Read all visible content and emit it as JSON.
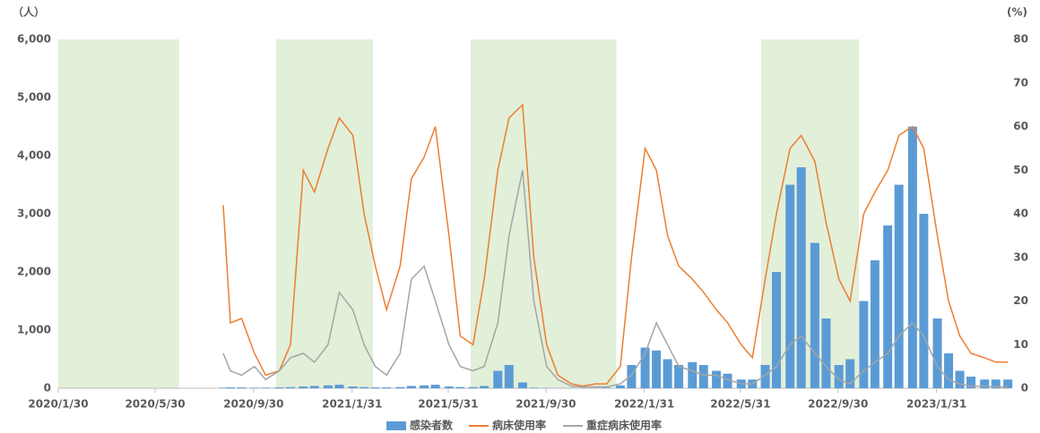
{
  "chart_data": {
    "type": "combo",
    "y_unit": "（人）",
    "y2_unit": "(%)",
    "x": [
      "2020/8/23",
      "2020/9/1",
      "2020/9/15",
      "2020/10/1",
      "2020/10/15",
      "2020/11/1",
      "2020/11/15",
      "2020/12/1",
      "2020/12/15",
      "2021/1/1",
      "2021/1/15",
      "2021/2/1",
      "2021/2/15",
      "2021/3/1",
      "2021/3/15",
      "2021/4/1",
      "2021/4/15",
      "2021/5/1",
      "2021/5/15",
      "2021/6/1",
      "2021/6/15",
      "2021/7/1",
      "2021/7/15",
      "2021/8/1",
      "2021/8/15",
      "2021/9/1",
      "2021/9/15",
      "2021/10/1",
      "2021/10/15",
      "2021/11/1",
      "2021/11/15",
      "2021/12/1",
      "2021/12/15",
      "2022/1/1",
      "2022/1/15",
      "2022/2/1",
      "2022/2/15",
      "2022/3/1",
      "2022/3/15",
      "2022/4/1",
      "2022/4/15",
      "2022/5/1",
      "2022/5/15",
      "2022/6/1",
      "2022/6/15",
      "2022/7/1",
      "2022/7/15",
      "2022/8/1",
      "2022/8/15",
      "2022/9/1",
      "2022/9/15",
      "2022/10/1",
      "2022/10/15",
      "2022/11/1",
      "2022/11/15",
      "2022/12/1",
      "2022/12/15",
      "2023/1/1",
      "2023/1/15",
      "2023/2/1",
      "2023/2/15",
      "2023/3/1",
      "2023/3/15",
      "2023/4/1",
      "2023/4/15",
      "2023/4/30"
    ],
    "series": [
      {
        "name": "感染者数",
        "type": "bar",
        "color": "#5b9bd5",
        "values": [
          10,
          15,
          15,
          10,
          10,
          15,
          20,
          30,
          40,
          50,
          60,
          30,
          20,
          15,
          15,
          20,
          40,
          50,
          60,
          30,
          20,
          20,
          40,
          300,
          400,
          100,
          10,
          5,
          3,
          3,
          3,
          5,
          10,
          50,
          400,
          700,
          650,
          500,
          400,
          450,
          400,
          300,
          250,
          150,
          150,
          400,
          2000,
          3500,
          3800,
          2500,
          1200,
          400,
          500,
          1500,
          2200,
          2800,
          3500,
          4500,
          3000,
          1200,
          600,
          300,
          200,
          150,
          150,
          150
        ]
      },
      {
        "name": "病床使用率",
        "type": "line",
        "axis": "y2",
        "color": "#ed7d31",
        "values": [
          42,
          15,
          16,
          8,
          3,
          4,
          10,
          50,
          45,
          55,
          62,
          58,
          40,
          28,
          18,
          28,
          48,
          53,
          60,
          35,
          12,
          10,
          25,
          50,
          62,
          65,
          30,
          10,
          3,
          1,
          0.5,
          1,
          1,
          5,
          30,
          55,
          50,
          35,
          28,
          25,
          22,
          18,
          15,
          10,
          7,
          25,
          40,
          55,
          58,
          52,
          38,
          25,
          20,
          40,
          45,
          50,
          58,
          60,
          55,
          35,
          20,
          12,
          8,
          7,
          6,
          6
        ]
      },
      {
        "name": "重症病床使用率",
        "type": "line",
        "axis": "y2",
        "color": "#a5a5a5",
        "values": [
          8,
          4,
          3,
          5,
          2,
          4,
          7,
          8,
          6,
          10,
          22,
          18,
          10,
          5,
          3,
          8,
          25,
          28,
          20,
          10,
          5,
          4,
          5,
          15,
          35,
          50,
          20,
          5,
          2,
          0.5,
          0.3,
          0.3,
          0.3,
          1,
          3,
          8,
          15,
          10,
          5,
          4,
          3,
          3,
          2,
          1,
          1,
          3,
          5,
          10,
          12,
          8,
          5,
          2,
          1,
          4,
          6,
          8,
          12,
          15,
          12,
          5,
          2,
          1,
          0.5,
          0.5,
          0.3,
          0.3
        ]
      }
    ],
    "xlim": [
      "2020/1/30",
      "2023/5/1"
    ],
    "xticks": [
      "2020/1/30",
      "2020/5/30",
      "2020/9/30",
      "2021/1/31",
      "2021/5/31",
      "2021/9/30",
      "2022/1/31",
      "2022/5/31",
      "2022/9/30",
      "2023/1/31"
    ],
    "ylim": [
      0,
      6000
    ],
    "yticks": [
      0,
      {
        "value": 1000,
        "label": "1,000"
      },
      {
        "value": 2000,
        "label": "2,000"
      },
      {
        "value": 3000,
        "label": "3,000"
      },
      {
        "value": 4000,
        "label": "4,000"
      },
      {
        "value": 5000,
        "label": "5,000"
      },
      {
        "value": 6000,
        "label": "6,000"
      }
    ],
    "y2lim": [
      0,
      80
    ],
    "y2ticks": [
      0,
      10,
      20,
      30,
      40,
      50,
      60,
      70,
      80
    ],
    "shaded_periods": [
      [
        "2020/1/30",
        "2020/6/29"
      ],
      [
        "2020/10/28",
        "2021/2/26"
      ],
      [
        "2021/6/28",
        "2021/12/27"
      ],
      [
        "2022/6/26",
        "2022/10/26"
      ]
    ],
    "shade_color": "#e2efd9",
    "grid": false,
    "legend": "bottom"
  }
}
